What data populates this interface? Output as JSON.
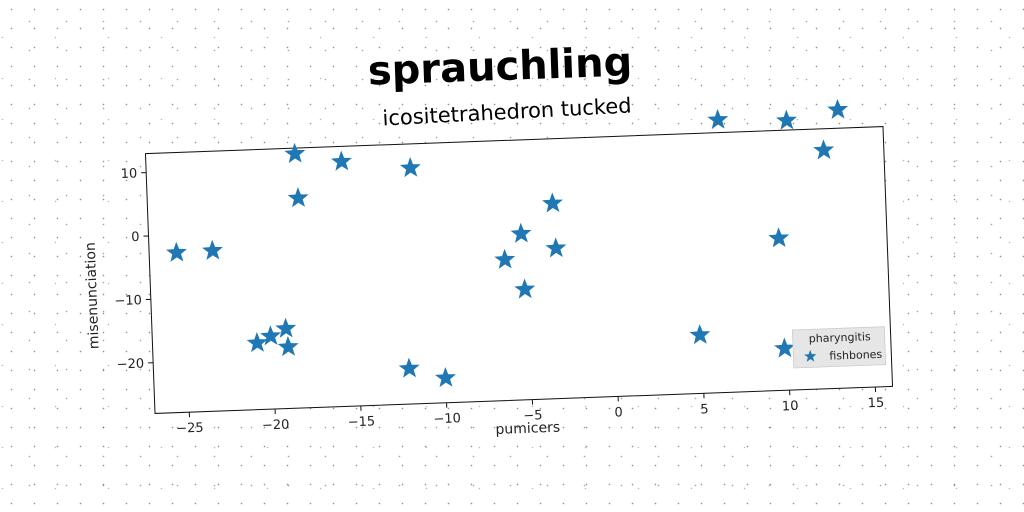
{
  "chart_data": {
    "type": "scatter",
    "title": "sprauchling",
    "subtitle": "icositetrahedron tucked",
    "xlabel": "pumicers",
    "ylabel": "misenunciation",
    "xlim": [
      -27,
      16
    ],
    "ylim": [
      -28,
      13
    ],
    "xticks": [
      -25,
      -20,
      -15,
      -10,
      -5,
      0,
      5,
      10,
      15
    ],
    "xtick_labels": [
      "−25",
      "−20",
      "−15",
      "−10",
      "−5",
      "0",
      "5",
      "10",
      "15"
    ],
    "yticks": [
      10,
      0,
      -10,
      -20
    ],
    "ytick_labels": [
      "10",
      "0",
      "−10",
      "−20"
    ],
    "grid": false,
    "legend": {
      "title": "pharyngitis",
      "placement": "lower-right",
      "entries": [
        "fishbones"
      ]
    },
    "series": [
      {
        "name": "fishbones",
        "marker": "star",
        "color": "#1f77b4",
        "points": [
          {
            "x": -25.4,
            "y": -2.8
          },
          {
            "x": -23.3,
            "y": -2.7
          },
          {
            "x": -18.3,
            "y": 12.1
          },
          {
            "x": -18.2,
            "y": 5.1
          },
          {
            "x": -15.6,
            "y": 10.6
          },
          {
            "x": -11.6,
            "y": 9.2
          },
          {
            "x": -20.9,
            "y": -17.5
          },
          {
            "x": -20.1,
            "y": -16.5
          },
          {
            "x": -19.2,
            "y": -15.4
          },
          {
            "x": -19.1,
            "y": -18.3
          },
          {
            "x": -12.1,
            "y": -22.4
          },
          {
            "x": -10.0,
            "y": -24.1
          },
          {
            "x": -6.3,
            "y": -5.8
          },
          {
            "x": -5.3,
            "y": -1.8
          },
          {
            "x": -5.2,
            "y": -10.6
          },
          {
            "x": -3.4,
            "y": 2.8
          },
          {
            "x": -3.3,
            "y": -4.3
          },
          {
            "x": 4.9,
            "y": -18.8
          },
          {
            "x": 6.4,
            "y": 15.0
          },
          {
            "x": 9.7,
            "y": -4.0
          },
          {
            "x": 9.8,
            "y": -21.4
          },
          {
            "x": 10.4,
            "y": 14.5
          },
          {
            "x": 12.5,
            "y": 9.6
          },
          {
            "x": 13.4,
            "y": 15.9
          }
        ]
      }
    ]
  }
}
